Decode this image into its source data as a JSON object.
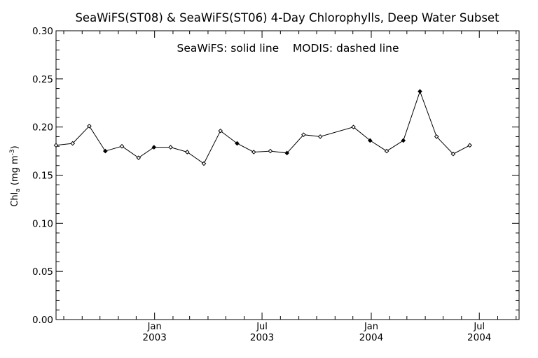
{
  "chart_data": {
    "type": "line",
    "title": "SeaWiFS(ST08) & SeaWiFS(ST06) 4-Day Chlorophylls, Deep Water Subset",
    "annotation": "SeaWiFS: solid line    MODIS: dashed line",
    "ylabel_main": "Chl",
    "ylabel_sub": "a",
    "ylabel_units": "(mg m",
    "ylabel_sup": "-3",
    "ylabel_close": ")",
    "ylim": [
      0.0,
      0.3
    ],
    "yticks": [
      "0.00",
      "0.05",
      "0.10",
      "0.15",
      "0.20",
      "0.25",
      "0.30"
    ],
    "xlim": [
      "2002-07-19",
      "2004-09-06"
    ],
    "xticks": [
      {
        "date": "2003-01-01",
        "month": "Jan",
        "year": "2003"
      },
      {
        "date": "2003-07-01",
        "month": "Jul",
        "year": "2003"
      },
      {
        "date": "2004-01-01",
        "month": "Jan",
        "year": "2004"
      },
      {
        "date": "2004-07-01",
        "month": "Jul",
        "year": "2004"
      }
    ],
    "series": [
      {
        "line": "solid",
        "points": [
          {
            "x": "2002-07-19",
            "y": 0.181,
            "marker": "open"
          },
          {
            "x": "2002-08-16",
            "y": 0.183,
            "marker": "open"
          },
          {
            "x": "2002-09-13",
            "y": 0.201,
            "marker": "open"
          },
          {
            "x": "2002-10-10",
            "y": 0.175,
            "marker": "filled"
          },
          {
            "x": "2002-11-07",
            "y": 0.18,
            "marker": "open"
          },
          {
            "x": "2002-12-05",
            "y": 0.168,
            "marker": "open"
          },
          {
            "x": "2002-12-31",
            "y": 0.179,
            "marker": "filled"
          },
          {
            "x": "2003-01-28",
            "y": 0.179,
            "marker": "open"
          },
          {
            "x": "2003-02-25",
            "y": 0.174,
            "marker": "open"
          },
          {
            "x": "2003-03-25",
            "y": 0.162,
            "marker": "open"
          },
          {
            "x": "2003-04-22",
            "y": 0.196,
            "marker": "open"
          },
          {
            "x": "2003-05-20",
            "y": 0.183,
            "marker": "filled"
          },
          {
            "x": "2003-06-17",
            "y": 0.174,
            "marker": "open"
          },
          {
            "x": "2003-07-15",
            "y": 0.175,
            "marker": "open"
          },
          {
            "x": "2003-08-12",
            "y": 0.173,
            "marker": "filled"
          },
          {
            "x": "2003-09-09",
            "y": 0.192,
            "marker": "open"
          },
          {
            "x": "2003-10-07",
            "y": 0.19,
            "marker": "open"
          },
          {
            "x": "2003-12-02",
            "y": 0.2,
            "marker": "open"
          },
          {
            "x": "2003-12-30",
            "y": 0.186,
            "marker": "filled"
          },
          {
            "x": "2004-01-27",
            "y": 0.175,
            "marker": "open"
          },
          {
            "x": "2004-02-24",
            "y": 0.186,
            "marker": "filled"
          },
          {
            "x": "2004-03-23",
            "y": 0.237,
            "marker": "filled"
          },
          {
            "x": "2004-04-20",
            "y": 0.19,
            "marker": "open"
          },
          {
            "x": "2004-05-18",
            "y": 0.172,
            "marker": "open"
          },
          {
            "x": "2004-06-15",
            "y": 0.181,
            "marker": "open"
          }
        ]
      }
    ],
    "grid": false
  }
}
